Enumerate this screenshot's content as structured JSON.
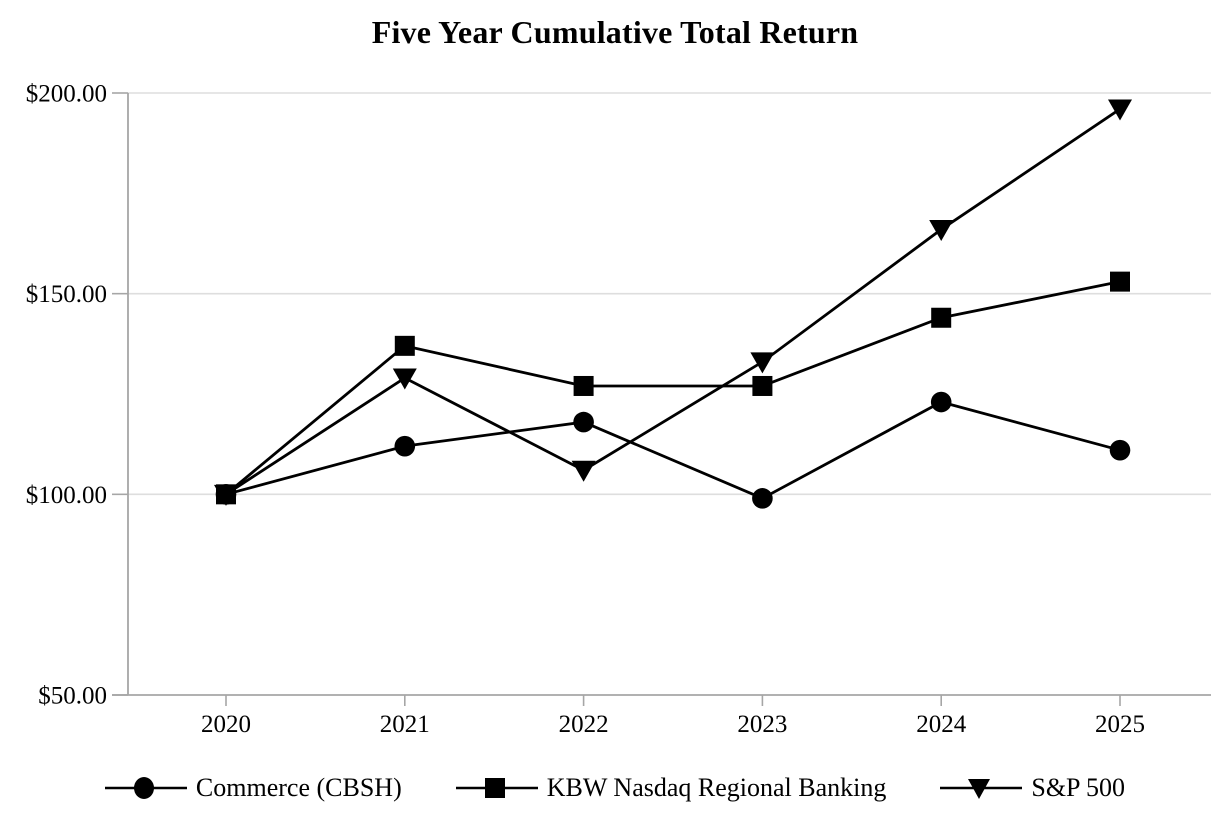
{
  "chart_data": {
    "type": "line",
    "title": "Five Year Cumulative Total Return",
    "categories": [
      "2020",
      "2021",
      "2022",
      "2023",
      "2024",
      "2025"
    ],
    "series": [
      {
        "name": "Commerce (CBSH)",
        "marker": "circle",
        "color": "#000000",
        "values": [
          100,
          112,
          118,
          99,
          123,
          111
        ]
      },
      {
        "name": "KBW Nasdaq Regional Banking",
        "marker": "square",
        "color": "#000000",
        "values": [
          100,
          137,
          127,
          127,
          144,
          153
        ]
      },
      {
        "name": "S&P 500",
        "marker": "triangle-down",
        "color": "#000000",
        "values": [
          100,
          129,
          106,
          133,
          166,
          196
        ]
      }
    ],
    "xlabel": "",
    "ylabel": "",
    "ylim": [
      50,
      200
    ],
    "ytick_step": 50,
    "yticks": [
      50,
      100,
      150,
      200
    ],
    "ytick_labels": [
      "$50.00",
      "$100.00",
      "$150.00",
      "$200.00"
    ],
    "ytick_prefix": "$",
    "grid": "horizontal",
    "legend_position": "bottom",
    "colors": {
      "series_line": "#000000",
      "axis_line": "#a6a6a6",
      "gridline": "#dedede",
      "text": "#000000",
      "background": "#ffffff"
    }
  }
}
